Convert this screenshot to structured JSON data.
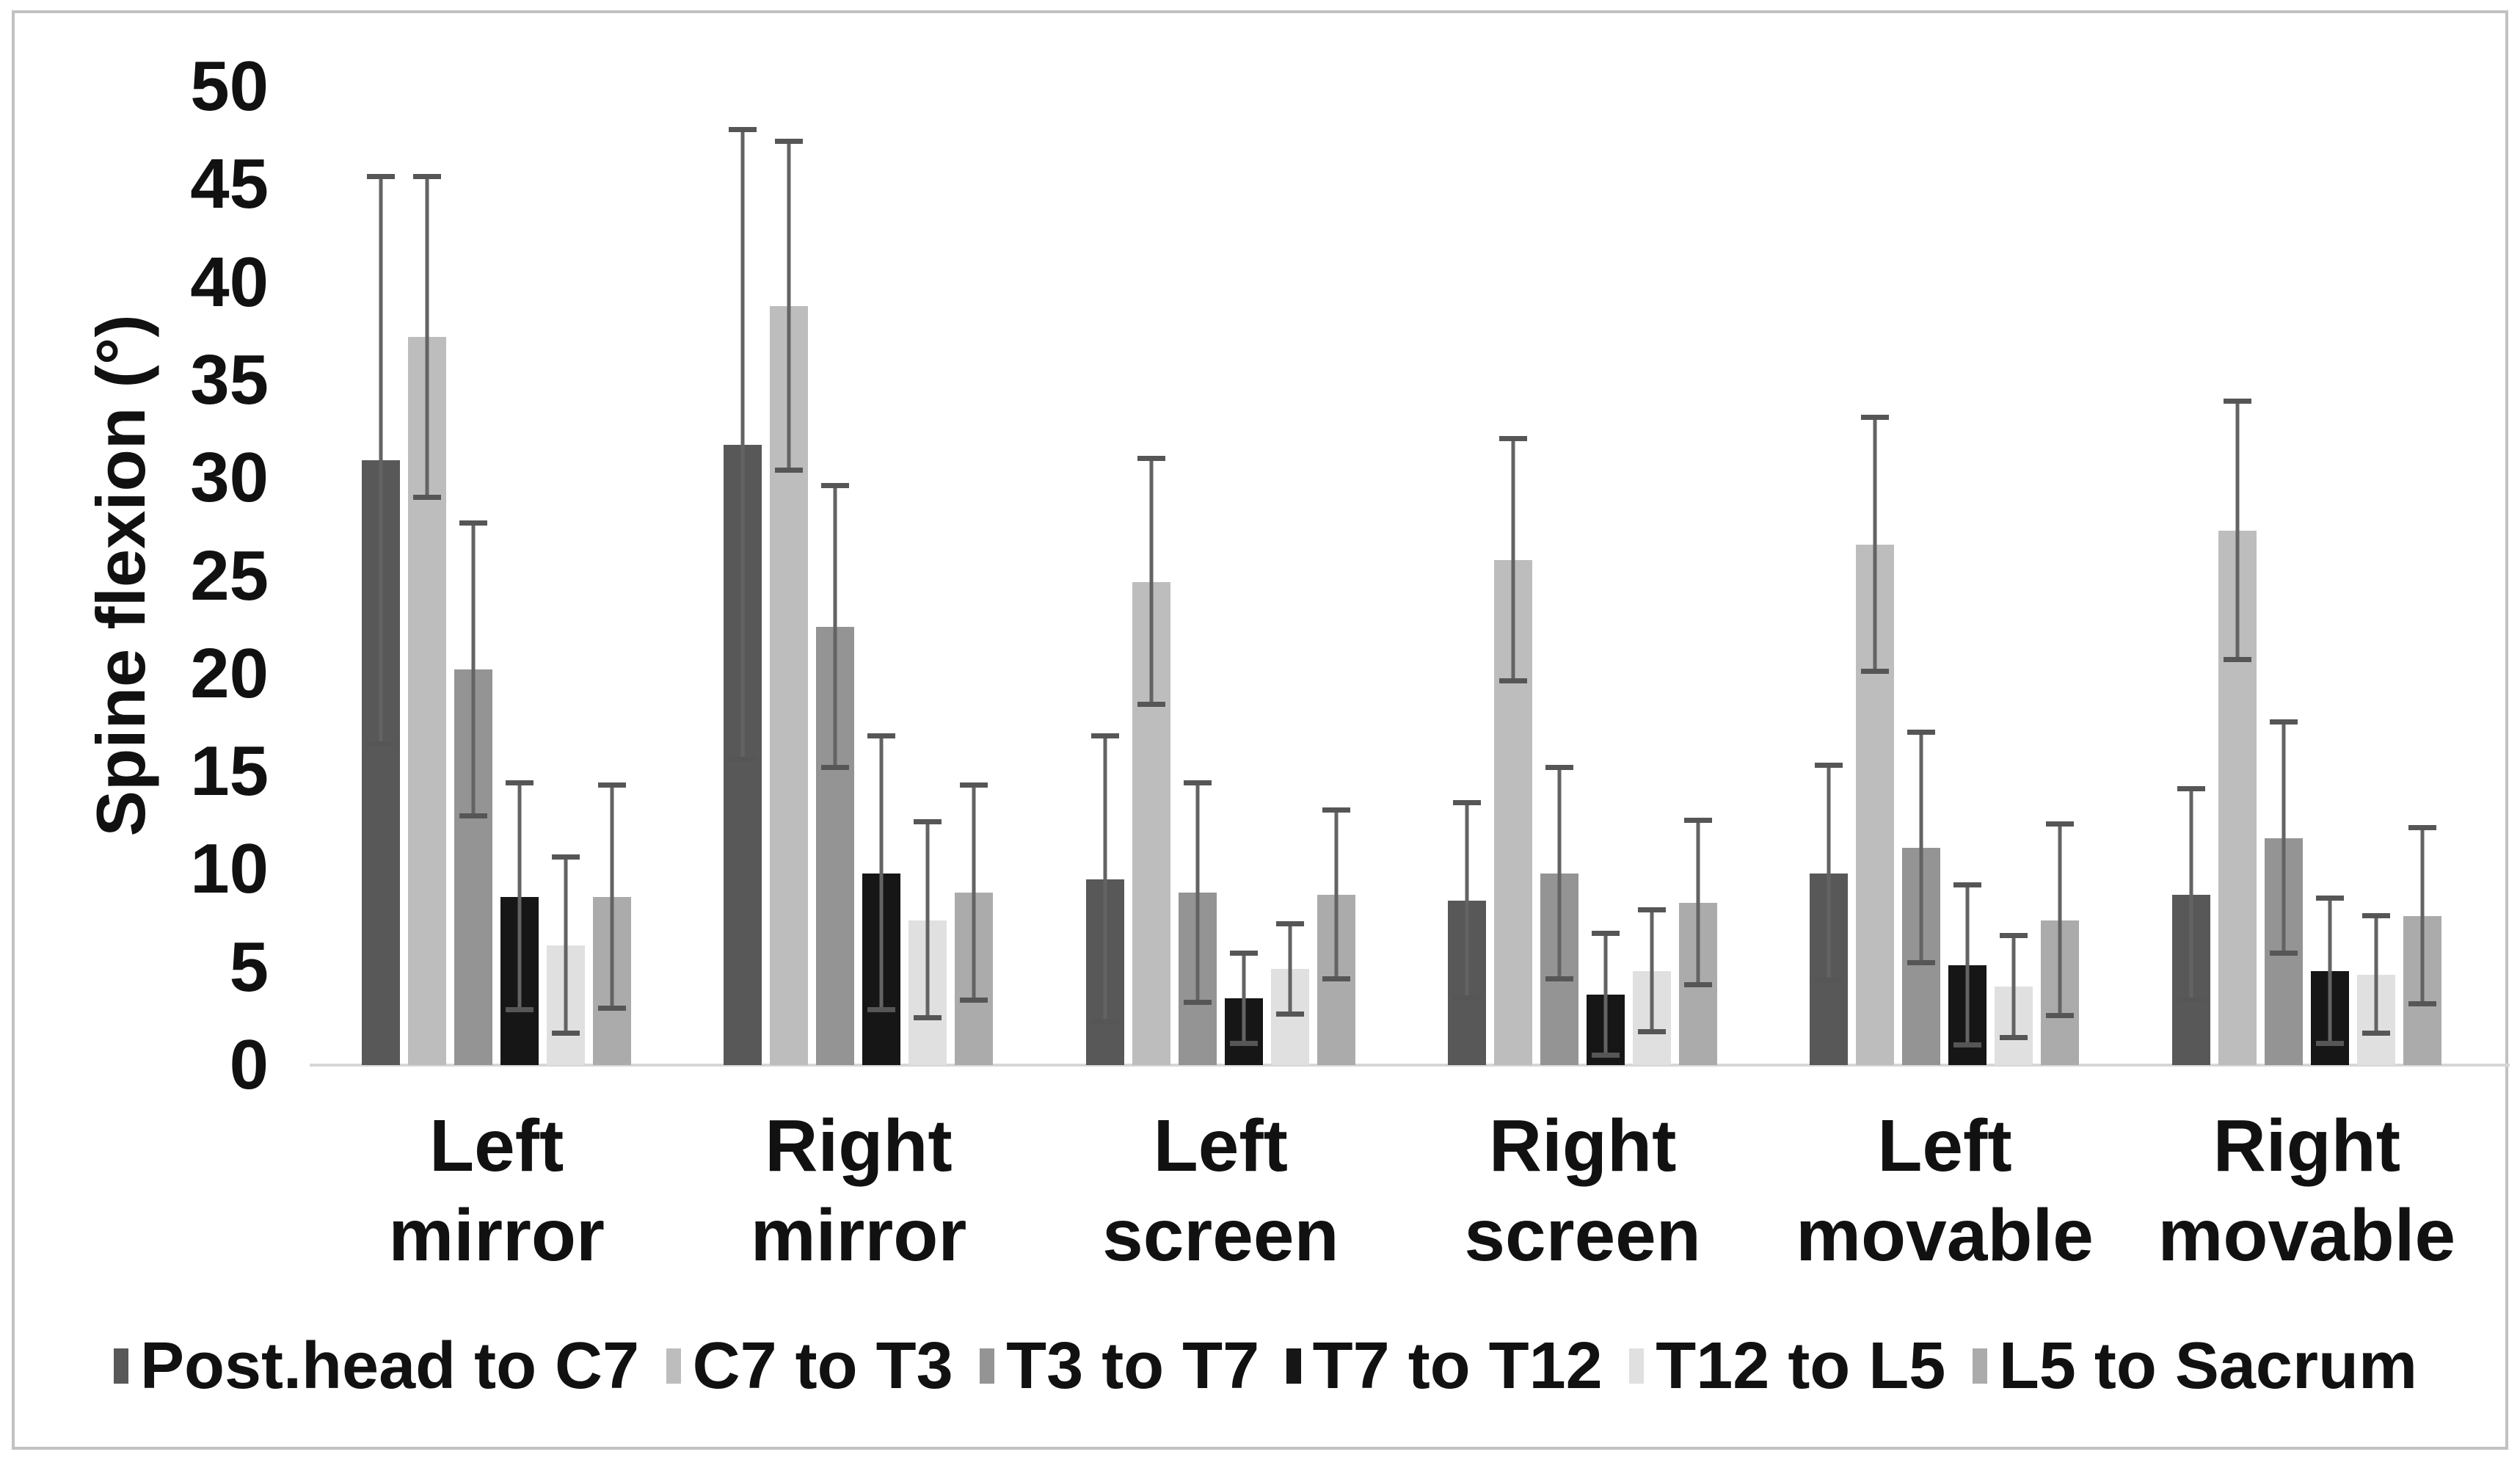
{
  "figure": {
    "background": "#ffffff",
    "border_color": "#c2c2c2",
    "axis_line_color": "#d6d6d6",
    "error_bar_color": "#5f5f5f"
  },
  "chart_data": {
    "type": "bar",
    "title": "",
    "xlabel": "",
    "ylabel": "Spine flexion (°)",
    "ylim": [
      0,
      50
    ],
    "ytick_step": 5,
    "ytick_labels": [
      "0",
      "5",
      "10",
      "15",
      "20",
      "25",
      "30",
      "35",
      "40",
      "45",
      "50"
    ],
    "grid": false,
    "legend_position": "bottom",
    "error_bars": "symmetric ±SD whiskers with caps",
    "categories": [
      "Left mirror",
      "Right mirror",
      "Left screen",
      "Right screen",
      "Left movable",
      "Right movable"
    ],
    "series": [
      {
        "name": "Post.head to C7",
        "color": "#585858",
        "values": [
          30.9,
          31.7,
          9.5,
          8.4,
          9.8,
          8.7
        ],
        "sd": [
          14.5,
          16.1,
          7.3,
          5.0,
          5.5,
          5.4
        ]
      },
      {
        "name": "C7 to T3",
        "color": "#bdbdbd",
        "values": [
          37.2,
          38.8,
          24.7,
          25.8,
          26.6,
          27.3
        ],
        "sd": [
          8.2,
          8.4,
          6.3,
          6.2,
          6.5,
          6.6
        ]
      },
      {
        "name": "T3 to T7",
        "color": "#949494",
        "values": [
          20.2,
          22.4,
          8.8,
          9.8,
          11.1,
          11.6
        ],
        "sd": [
          7.5,
          7.2,
          5.6,
          5.4,
          5.9,
          5.9
        ]
      },
      {
        "name": "T7 to T12",
        "color": "#161616",
        "values": [
          8.6,
          9.8,
          3.4,
          3.6,
          5.1,
          4.8
        ],
        "sd": [
          5.8,
          7.0,
          2.3,
          3.1,
          4.1,
          3.7
        ]
      },
      {
        "name": "T12 to L5",
        "color": "#e0e0e0",
        "values": [
          6.1,
          7.4,
          4.9,
          4.8,
          4.0,
          4.6
        ],
        "sd": [
          4.5,
          5.0,
          2.3,
          3.1,
          2.6,
          3.0
        ]
      },
      {
        "name": "L5 to Sacrum",
        "color": "#ababab",
        "values": [
          8.6,
          8.8,
          8.7,
          8.3,
          7.4,
          7.6
        ],
        "sd": [
          5.7,
          5.5,
          4.3,
          4.2,
          4.9,
          4.5
        ]
      }
    ]
  }
}
